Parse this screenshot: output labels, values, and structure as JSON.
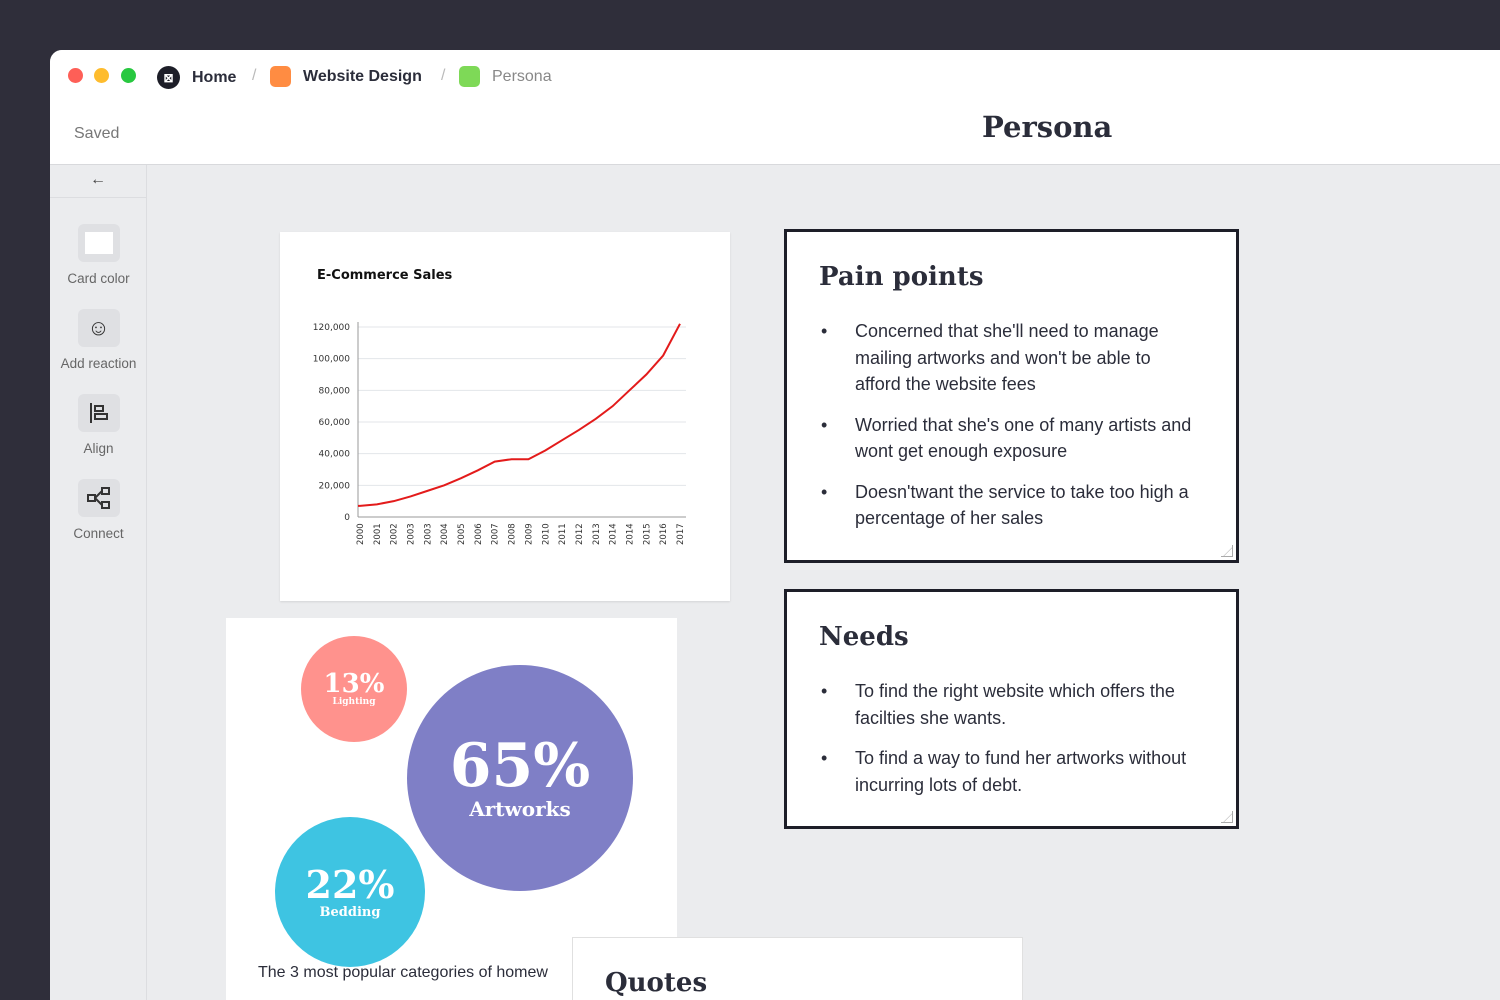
{
  "breadcrumb": [
    {
      "label": "Home",
      "icon": "app-logo-icon"
    },
    {
      "label": "Website Design",
      "color": "#ff8c42"
    },
    {
      "label": "Persona",
      "color": "#7ed957"
    }
  ],
  "status": "Saved",
  "page_title": "Persona",
  "sidebar": {
    "back_icon": "arrow-left-icon",
    "tools": [
      {
        "label": "Card color",
        "icon": "card-color-icon"
      },
      {
        "label": "Add reaction",
        "icon": "emoji-add-icon"
      },
      {
        "label": "Align",
        "icon": "align-left-icon"
      },
      {
        "label": "Connect",
        "icon": "connect-icon"
      }
    ]
  },
  "chart_data": {
    "type": "line",
    "title": "E-Commerce Sales",
    "xlabel": "",
    "ylabel": "",
    "categories": [
      "2000",
      "2001",
      "2002",
      "2003",
      "2003",
      "2004",
      "2005",
      "2006",
      "2007",
      "2008",
      "2009",
      "2010",
      "2011",
      "2012",
      "2013",
      "2014",
      "2014",
      "2015",
      "2016",
      "2017"
    ],
    "values": [
      7000,
      8000,
      10000,
      13000,
      16500,
      20000,
      24500,
      29500,
      35000,
      36500,
      36500,
      42000,
      48500,
      55000,
      62000,
      70000,
      80000,
      90000,
      102000,
      122000
    ],
    "yticks": [
      "0",
      "20,000",
      "40,000",
      "60,000",
      "80,000",
      "100,000",
      "120,000"
    ],
    "ylim": [
      0,
      120000
    ],
    "grid": true,
    "color": "#e31b1b"
  },
  "bubbles": [
    {
      "value": "13%",
      "label": "Lighting",
      "color": "#ff928d"
    },
    {
      "value": "65%",
      "label": "Artworks",
      "color": "#7f7fc6"
    },
    {
      "value": "22%",
      "label": "Bedding",
      "color": "#3ec4e2"
    }
  ],
  "bubble_caption": "The 3 most popular categories of homew",
  "pain_points": {
    "title": "Pain points",
    "items": [
      "Concerned that she'll need to manage mailing artworks and won't be able to afford the website fees",
      "Worried that she's one of many artists and wont get enough exposure",
      "Doesn'twant the service to take too high a percentage of her sales"
    ]
  },
  "needs": {
    "title": "Needs",
    "items": [
      "To find the right website which offers the facilties she wants.",
      "To find a way to fund her artworks without incurring lots of debt."
    ]
  },
  "quotes": {
    "title": "Quotes"
  }
}
